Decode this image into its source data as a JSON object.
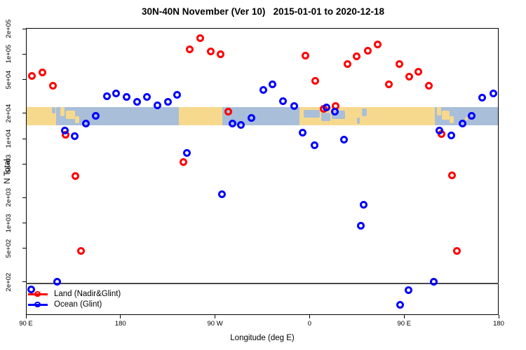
{
  "chart_data": {
    "type": "scatter",
    "title": "30N-40N November (Ver 10)   2015-01-01 to 2020-12-18",
    "xlabel": "Longitude (deg E)",
    "ylabel": "N Total",
    "x_axis": {
      "range": [
        90,
        540
      ],
      "note_wraps_longitude": "axis runs 90E eastward around the globe to 180",
      "ticks": [
        {
          "lon": 90,
          "label": "90 E"
        },
        {
          "lon": 180,
          "label": "180"
        },
        {
          "lon": 270,
          "label": "90 W"
        },
        {
          "lon": 360,
          "label": "0"
        },
        {
          "lon": 450,
          "label": "90 E"
        },
        {
          "lon": 540,
          "label": "180"
        }
      ]
    },
    "y_axis": {
      "scale": "log",
      "range": [
        78,
        206000
      ],
      "ticks": [
        {
          "v": 200000,
          "label": "2e+05"
        },
        {
          "v": 100000,
          "label": "1e+05"
        },
        {
          "v": 50000,
          "label": "5e+04"
        },
        {
          "v": 20000,
          "label": "2e+04"
        },
        {
          "v": 10000,
          "label": "1e+04"
        },
        {
          "v": 5000,
          "label": "5e+03"
        },
        {
          "v": 2000,
          "label": "2e+03"
        },
        {
          "v": 1000,
          "label": "1e+03"
        },
        {
          "v": 500,
          "label": "5e+02"
        },
        {
          "v": 200,
          "label": "2e+02"
        }
      ]
    },
    "reference_line": {
      "n": 192,
      "color": "#4a4a4a"
    },
    "map_band": {
      "n_top": 23500,
      "n_bottom": 14500,
      "land_color": "#F7D98E",
      "ocean_color": "#A9BED8",
      "land_segments": [
        {
          "from": 90,
          "to": 118.7
        },
        {
          "from": 235.6,
          "to": 277.0
        },
        {
          "from": 350.4,
          "to": 479.3
        }
      ],
      "land_patches": [
        {
          "from": 122.5,
          "to": 126.5,
          "y0": 0.0,
          "y1": 0.5
        },
        {
          "from": 128.0,
          "to": 136.5,
          "y0": 0.2,
          "y1": 0.65
        },
        {
          "from": 136.5,
          "to": 141.0,
          "y0": 0.5,
          "y1": 0.9
        },
        {
          "from": 481.0,
          "to": 485.0,
          "y0": 0.0,
          "y1": 0.45
        },
        {
          "from": 486.0,
          "to": 493.5,
          "y0": 0.2,
          "y1": 0.7
        },
        {
          "from": 493.5,
          "to": 497.5,
          "y0": 0.5,
          "y1": 0.9
        },
        {
          "from": 508.0,
          "to": 510.5,
          "y0": 0.55,
          "y1": 0.75
        }
      ],
      "ocean_patches": [
        {
          "from": 114.5,
          "to": 118.2,
          "y0": 0.0,
          "y1": 0.35
        },
        {
          "from": 354.5,
          "to": 370.0,
          "y0": 0.15,
          "y1": 0.6
        },
        {
          "from": 371.0,
          "to": 380.0,
          "y0": 0.3,
          "y1": 0.78
        },
        {
          "from": 381.0,
          "to": 394.0,
          "y0": 0.18,
          "y1": 0.68
        },
        {
          "from": 405.0,
          "to": 408.0,
          "y0": 0.6,
          "y1": 0.92
        },
        {
          "from": 409.5,
          "to": 414.5,
          "y0": 0.05,
          "y1": 0.5
        }
      ]
    },
    "series": [
      {
        "name": "Land (Nadir&Glint)",
        "color": "#FF0000",
        "points": [
          {
            "lon": 96.0,
            "n": 55000
          },
          {
            "lon": 105.4,
            "n": 61000
          },
          {
            "lon": 115.8,
            "n": 42000
          },
          {
            "lon": 127.6,
            "n": 11200
          },
          {
            "lon": 136.9,
            "n": 3600
          },
          {
            "lon": 142.1,
            "n": 470
          },
          {
            "lon": 240.2,
            "n": 5300
          },
          {
            "lon": 245.6,
            "n": 114000
          },
          {
            "lon": 256.0,
            "n": 155000
          },
          {
            "lon": 266.1,
            "n": 107000
          },
          {
            "lon": 275.6,
            "n": 100000
          },
          {
            "lon": 282.8,
            "n": 21000
          },
          {
            "lon": 356.2,
            "n": 96000
          },
          {
            "lon": 365.3,
            "n": 48000
          },
          {
            "lon": 373.5,
            "n": 22700
          },
          {
            "lon": 385.1,
            "n": 24200
          },
          {
            "lon": 395.8,
            "n": 77000
          },
          {
            "lon": 405.1,
            "n": 95000
          },
          {
            "lon": 415.4,
            "n": 109000
          },
          {
            "lon": 424.7,
            "n": 131000
          },
          {
            "lon": 435.4,
            "n": 44000
          },
          {
            "lon": 445.2,
            "n": 76000
          },
          {
            "lon": 454.7,
            "n": 54000
          },
          {
            "lon": 463.7,
            "n": 62000
          },
          {
            "lon": 473.7,
            "n": 42000
          },
          {
            "lon": 485.9,
            "n": 11300
          },
          {
            "lon": 495.3,
            "n": 3700
          },
          {
            "lon": 500.6,
            "n": 470
          }
        ]
      },
      {
        "name": "Ocean (Glint)",
        "color": "#0000FF",
        "points": [
          {
            "lon": 94.7,
            "n": 163
          },
          {
            "lon": 119.8,
            "n": 200
          },
          {
            "lon": 126.9,
            "n": 12400
          },
          {
            "lon": 136.5,
            "n": 10600
          },
          {
            "lon": 147.2,
            "n": 15200
          },
          {
            "lon": 156.1,
            "n": 18500
          },
          {
            "lon": 167.0,
            "n": 32000
          },
          {
            "lon": 176.1,
            "n": 34000
          },
          {
            "lon": 185.9,
            "n": 31000
          },
          {
            "lon": 196.0,
            "n": 27500
          },
          {
            "lon": 205.0,
            "n": 31000
          },
          {
            "lon": 215.3,
            "n": 25000
          },
          {
            "lon": 225.5,
            "n": 27000
          },
          {
            "lon": 234.0,
            "n": 33000
          },
          {
            "lon": 243.4,
            "n": 6700
          },
          {
            "lon": 276.9,
            "n": 2200
          },
          {
            "lon": 286.8,
            "n": 15000
          },
          {
            "lon": 294.5,
            "n": 14400
          },
          {
            "lon": 304.5,
            "n": 17600
          },
          {
            "lon": 316.2,
            "n": 38000
          },
          {
            "lon": 325.0,
            "n": 44000
          },
          {
            "lon": 334.4,
            "n": 28000
          },
          {
            "lon": 345.7,
            "n": 24500
          },
          {
            "lon": 353.5,
            "n": 11800
          },
          {
            "lon": 364.6,
            "n": 8300
          },
          {
            "lon": 376.4,
            "n": 23500
          },
          {
            "lon": 384.2,
            "n": 20700
          },
          {
            "lon": 393.1,
            "n": 9800
          },
          {
            "lon": 409.1,
            "n": 920
          },
          {
            "lon": 411.8,
            "n": 1660
          },
          {
            "lon": 446.3,
            "n": 107
          },
          {
            "lon": 454.1,
            "n": 160
          },
          {
            "lon": 478.1,
            "n": 200
          },
          {
            "lon": 483.7,
            "n": 12400
          },
          {
            "lon": 494.8,
            "n": 10800
          },
          {
            "lon": 505.5,
            "n": 15200
          },
          {
            "lon": 514.2,
            "n": 18700
          },
          {
            "lon": 524.6,
            "n": 30500
          },
          {
            "lon": 534.9,
            "n": 34000
          }
        ]
      }
    ],
    "legend": {
      "position": "bottom-left",
      "items": [
        {
          "label": "Land (Nadir&Glint)",
          "color": "#FF0000"
        },
        {
          "label": "Ocean (Glint)",
          "color": "#0000FF"
        }
      ]
    }
  }
}
